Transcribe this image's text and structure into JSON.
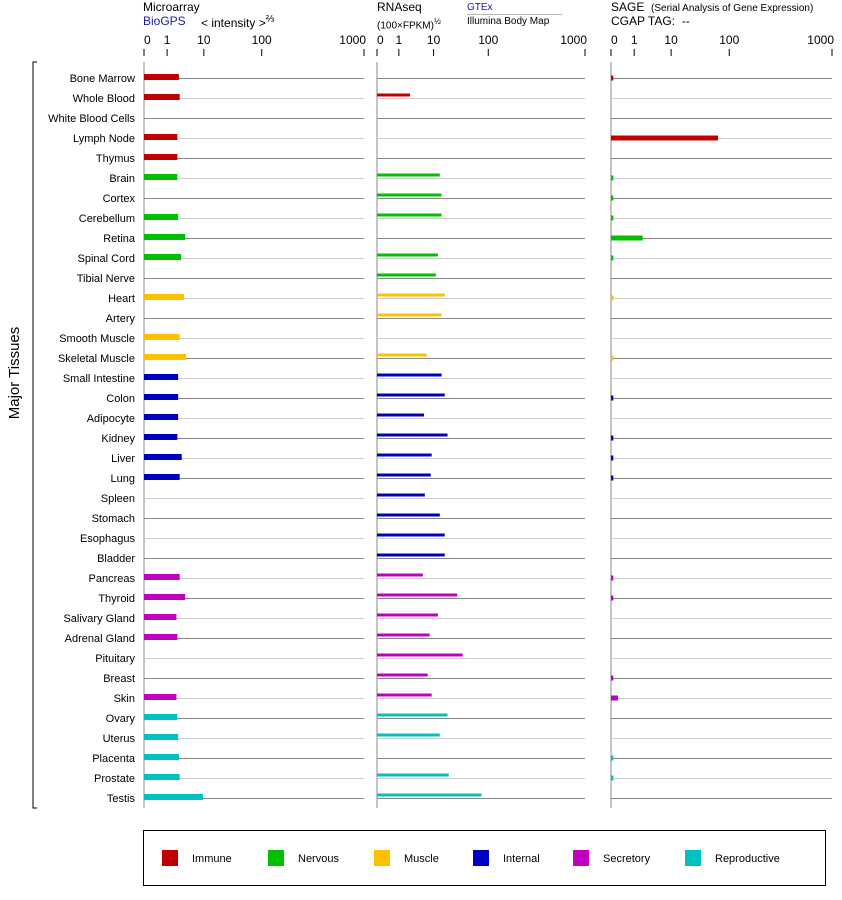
{
  "headers": {
    "microarray": {
      "title": "Microarray",
      "source": "BioGPS",
      "units": "< intensity >",
      "units_exp": "⅔"
    },
    "rnaseq": {
      "title": "RNAseq",
      "units": "(100×FPKM)",
      "units_exp": "½",
      "source1": "GTEx",
      "source2": "Illumina Body Map"
    },
    "sage": {
      "title": "SAGE",
      "subtitle": "(Serial Analysis of Gene Expression)",
      "tag_label": "CGAP TAG:",
      "tag_value": "--"
    }
  },
  "chart_data": {
    "type": "bar",
    "orientation": "horizontal",
    "ylabel": "Major Tissues",
    "tick_values": [
      0,
      1,
      10,
      100,
      1000
    ],
    "tick_labels": [
      "0",
      "1",
      "10",
      "100",
      "1000"
    ],
    "categories": [
      "Bone Marrow",
      "Whole Blood",
      "White Blood Cells",
      "Lymph Node",
      "Thymus",
      "Brain",
      "Cortex",
      "Cerebellum",
      "Retina",
      "Spinal Cord",
      "Tibial Nerve",
      "Heart",
      "Artery",
      "Smooth Muscle",
      "Skeletal Muscle",
      "Small Intestine",
      "Colon",
      "Adipocyte",
      "Kidney",
      "Liver",
      "Lung",
      "Spleen",
      "Stomach",
      "Esophagus",
      "Bladder",
      "Pancreas",
      "Thyroid",
      "Salivary Gland",
      "Adrenal Gland",
      "Pituitary",
      "Breast",
      "Skin",
      "Ovary",
      "Uterus",
      "Placenta",
      "Prostate",
      "Testis"
    ],
    "groups": [
      0,
      0,
      0,
      0,
      0,
      1,
      1,
      1,
      1,
      1,
      1,
      2,
      2,
      2,
      2,
      3,
      3,
      3,
      3,
      3,
      3,
      3,
      3,
      3,
      3,
      4,
      4,
      4,
      4,
      4,
      4,
      4,
      5,
      5,
      5,
      5,
      5
    ],
    "legend": [
      {
        "label": "Immune",
        "color": "#c00000"
      },
      {
        "label": "Nervous",
        "color": "#00c000"
      },
      {
        "label": "Muscle",
        "color": "#ffc000"
      },
      {
        "label": "Internal",
        "color": "#0000c0"
      },
      {
        "label": "Secretory",
        "color": "#c000c0"
      },
      {
        "label": "Reproductive",
        "color": "#00c0c0"
      }
    ],
    "legend_position": "bottom",
    "series": [
      {
        "name": "Microarray",
        "values": [
          2.1,
          2.2,
          null,
          1.9,
          1.9,
          1.9,
          null,
          2.0,
          3.1,
          2.4,
          null,
          2.9,
          null,
          2.2,
          3.3,
          2.0,
          2.0,
          2.0,
          1.9,
          2.5,
          2.2,
          null,
          null,
          null,
          null,
          2.2,
          3.1,
          1.8,
          1.9,
          null,
          null,
          1.8,
          1.9,
          2.0,
          2.1,
          2.2,
          9.4
        ]
      },
      {
        "name": "RNAseq",
        "values": [
          null,
          2.1,
          null,
          null,
          null,
          13,
          14,
          14,
          null,
          12,
          11,
          16,
          14,
          null,
          6.4,
          14,
          16,
          5.3,
          18,
          8.8,
          8.3,
          5.6,
          13,
          16,
          16,
          4.9,
          27,
          12,
          7.7,
          34,
          6.8,
          8.8,
          18,
          13,
          null,
          19,
          75
        ]
      },
      {
        "name": "SAGE",
        "values": [
          0.1,
          null,
          null,
          64,
          null,
          0.1,
          0.1,
          0.1,
          1.7,
          0.1,
          null,
          0.1,
          null,
          null,
          0.1,
          null,
          0.1,
          null,
          0.1,
          0.1,
          0.1,
          null,
          null,
          null,
          null,
          0.1,
          0.1,
          null,
          null,
          null,
          0.1,
          0.3,
          null,
          null,
          0.1,
          0.1,
          null
        ]
      }
    ]
  }
}
